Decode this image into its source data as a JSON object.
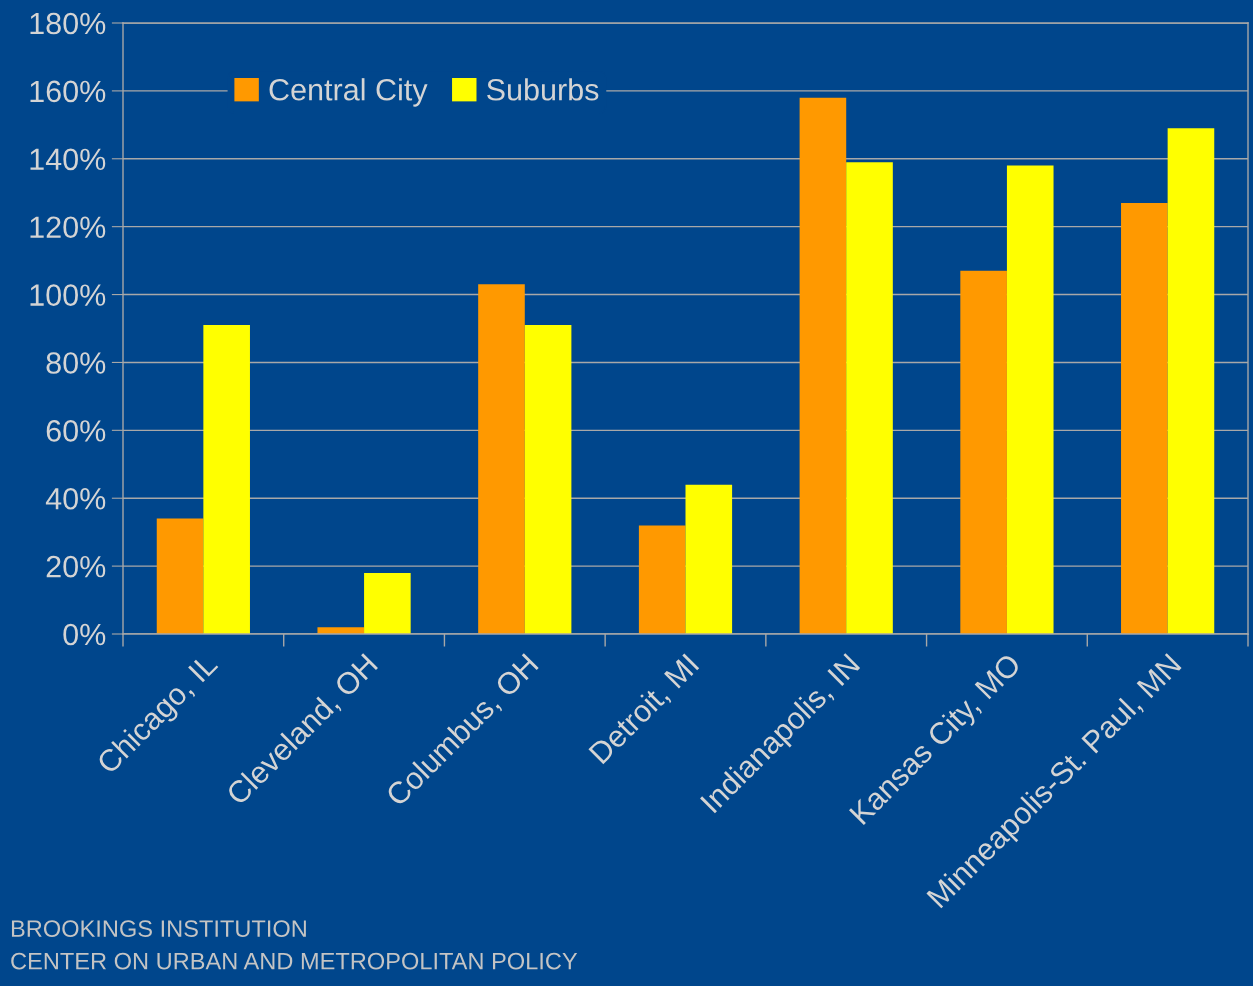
{
  "chart_data": {
    "type": "bar",
    "categories": [
      "Chicago, IL",
      "Cleveland, OH",
      "Columbus, OH",
      "Detroit, MI",
      "Indianapolis, IN",
      "Kansas City, MO",
      "Minneapolis-St. Paul, MN"
    ],
    "series": [
      {
        "name": "Central City",
        "color": "#ff9900",
        "values": [
          34,
          2,
          103,
          32,
          158,
          107,
          127
        ]
      },
      {
        "name": "Suburbs",
        "color": "#ffff00",
        "values": [
          91,
          18,
          91,
          44,
          139,
          138,
          149
        ]
      }
    ],
    "ylim": [
      0,
      180
    ],
    "yticks": [
      {
        "value": 0,
        "label": "0%"
      },
      {
        "value": 20,
        "label": "20%"
      },
      {
        "value": 40,
        "label": "40%"
      },
      {
        "value": 60,
        "label": "60%"
      },
      {
        "value": 80,
        "label": "80%"
      },
      {
        "value": 100,
        "label": "100%"
      },
      {
        "value": 120,
        "label": "120%"
      },
      {
        "value": 140,
        "label": "140%"
      },
      {
        "value": 160,
        "label": "160%"
      },
      {
        "value": 180,
        "label": "180%"
      }
    ],
    "grid": "y",
    "legend": "top left",
    "annotations": [
      "BROOKINGS INSTITUTION",
      "CENTER ON URBAN AND METROPOLITAN POLICY"
    ]
  }
}
